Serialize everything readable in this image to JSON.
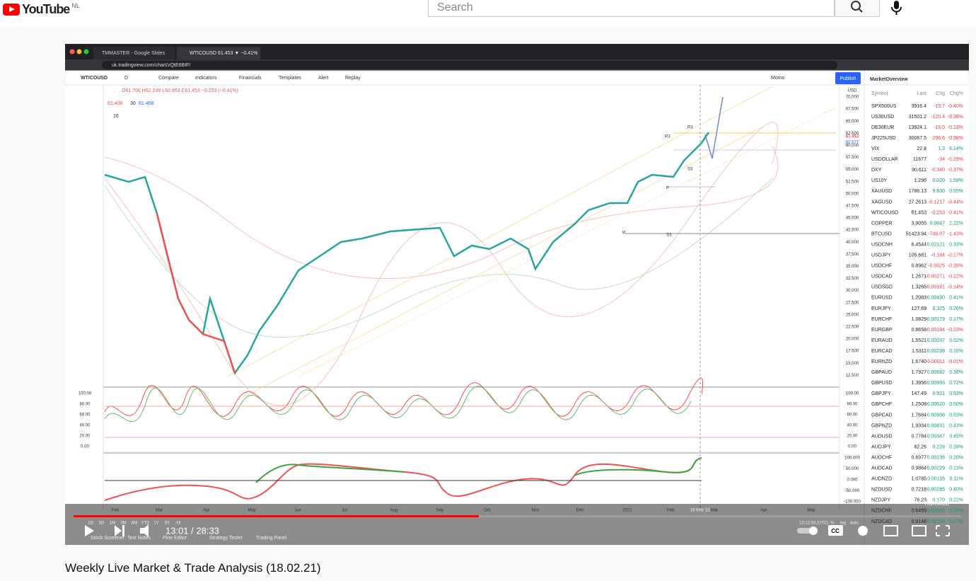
{
  "header": {
    "logo": "YouTube",
    "region": "NL",
    "search_placeholder": "Search"
  },
  "browser": {
    "tabs": [
      "TMMASTER - Google Slides",
      "WTICOUSD 61.453 ▼ −0.41%"
    ],
    "url": "uk.tradingview.com/chart/zQtE6BIF/"
  },
  "toolbar": {
    "symbol": "WTICOUSD",
    "interval": "D",
    "items": [
      "Compare",
      "Indicators",
      "Financials",
      "Templates",
      "Alert",
      "Replay"
    ],
    "layout": "Momo",
    "publish": "Publish"
  },
  "legend": {
    "ohlc": "O61.706 H62.249 L60.953 C61.453 −0.253 (−0.41%)",
    "bid": "61.438",
    "spread": "30",
    "ask": "61.468",
    "count": "16"
  },
  "price_axis": {
    "unit": "USD",
    "labels": [
      "70.000",
      "67.500",
      "65.000",
      "62.500",
      "60.000",
      "57.500",
      "55.000",
      "52.500",
      "50.000",
      "47.500",
      "45.000",
      "42.500",
      "40.000",
      "37.500",
      "35.000",
      "32.500",
      "30.000",
      "27.500",
      "25.000",
      "22.500",
      "20.000",
      "17.500",
      "15.000",
      "12.500"
    ],
    "last": "61.453",
    "cross": "60.577"
  },
  "pivots": [
    "R3",
    "R3",
    "S3",
    "P",
    "P",
    "S3"
  ],
  "osc_axis": [
    "100.00",
    "80.00",
    "60.00",
    "40.00",
    "20.00",
    "0.00"
  ],
  "mom_axis": [
    "100.000",
    "50.000",
    "0.000",
    "-50.000",
    "-100.000"
  ],
  "time_axis": [
    "Feb",
    "Mar",
    "Apr",
    "May",
    "Jun",
    "Jul",
    "Aug",
    "Sep",
    "Oct",
    "Nov",
    "Dec",
    "2021",
    "Feb",
    "Mar",
    "Apr",
    "May"
  ],
  "crosshair_date": "19 Feb '21",
  "watchlist": {
    "title": "MarketOverview",
    "columns": [
      "Symbol",
      "Last",
      "Chg",
      "Chg%"
    ],
    "rows": [
      [
        "SPX500US",
        "3916.4",
        "-15.7",
        "-0.40%"
      ],
      [
        "US30USD",
        "31501.2",
        "-120.4",
        "-0.38%"
      ],
      [
        "DE30EUR",
        "13924.1",
        "-18.0",
        "-0.13%"
      ],
      [
        "JP225USD",
        "30067.5",
        "-298.6",
        "-0.98%"
      ],
      [
        "VIX",
        "22.8",
        "1.3",
        "6.14%"
      ],
      [
        "USDOLLAR",
        "11677",
        "-34",
        "-0.29%"
      ],
      [
        "DXY",
        "90.611",
        "-0.340",
        "-0.37%"
      ],
      [
        "US10Y",
        "1.296",
        "0.020",
        "1.59%"
      ],
      [
        "XAUUSD",
        "1786.13",
        "9.830",
        "0.55%"
      ],
      [
        "XAGUSD",
        "27.2613",
        "-0.1217",
        "-0.44%"
      ],
      [
        "WTICOUSD",
        "61.453",
        "-0.253",
        "-0.41%"
      ],
      [
        "COPPER",
        "3.9055",
        "0.0847",
        "2.22%"
      ],
      [
        "BTCUSD",
        "51423.94",
        "-746.07",
        "-1.43%"
      ],
      [
        "USDCNH",
        "6.4544",
        "0.02121",
        "0.33%"
      ],
      [
        "USDJPY",
        "105.681",
        "-0.184",
        "-0.17%"
      ],
      [
        "USDCHF",
        "0.8962",
        "-0.0025",
        "-0.28%"
      ],
      [
        "USDCAD",
        "1.2671",
        "-0.00271",
        "-0.22%"
      ],
      [
        "USDSGD",
        "1.3265",
        "-0.00181",
        "-0.14%"
      ],
      [
        "EURUSD",
        "1.2083",
        "0.00490",
        "0.41%"
      ],
      [
        "EURJPY",
        "127.69",
        "0.325",
        "0.26%"
      ],
      [
        "EURCHF",
        "1.0829",
        "0.00179",
        "0.17%"
      ],
      [
        "EURGBP",
        "0.8658",
        "-0.00194",
        "-0.23%"
      ],
      [
        "EURAUD",
        "1.5521",
        "0.00037",
        "0.02%"
      ],
      [
        "EURCAD",
        "1.5311",
        "0.00238",
        "0.16%"
      ],
      [
        "EURNZD",
        "1.6740",
        "-0.00011",
        "-0.01%"
      ],
      [
        "GBPAUD",
        "1.7927",
        "0.00682",
        "0.38%"
      ],
      [
        "GBPUSD",
        "1.3956",
        "0.00993",
        "0.72%"
      ],
      [
        "GBPJPY",
        "147.49",
        "0.921",
        "0.63%"
      ],
      [
        "GBPCHF",
        "1.2508",
        "0.00620",
        "0.50%"
      ],
      [
        "GBPCAD",
        "1.7684",
        "0.00938",
        "0.53%"
      ],
      [
        "GBPNZD",
        "1.9334",
        "0.00831",
        "0.43%"
      ],
      [
        "AUDUSD",
        "0.7784",
        "0.00347",
        "0.45%"
      ],
      [
        "AUDJPY",
        "82.26",
        "0.228",
        "0.28%"
      ],
      [
        "AUDCHF",
        "0.6977",
        "0.00136",
        "0.20%"
      ],
      [
        "AUDCAD",
        "0.9864",
        "0.00229",
        "0.23%"
      ],
      [
        "AUDNZD",
        "1.0785",
        "0.00116",
        "0.11%"
      ],
      [
        "NZDUSD",
        "0.7218",
        "0.00285",
        "0.40%"
      ],
      [
        "NZDJPY",
        "76.23",
        "0.170",
        "0.22%"
      ],
      [
        "NZDCHF",
        "0.6469",
        "0.00103",
        "0.16%"
      ],
      [
        "NZDCAD",
        "0.9146",
        "0.00155",
        "0.17%"
      ]
    ]
  },
  "bottom": {
    "ranges": [
      "1D",
      "5D",
      "1M",
      "3M",
      "6M",
      "YTD",
      "1Y",
      "5Y",
      "All"
    ],
    "clock": "13:12:03 (UTC)",
    "scale": [
      "%",
      "log",
      "auto"
    ],
    "tabs": [
      "Stock Screener",
      "Text Notes",
      "Pine Editor",
      "Strategy Tester",
      "Trading Panel"
    ]
  },
  "player": {
    "time": "13:01 / 28:33",
    "watermark": "TICKMILL",
    "cc": "CC"
  },
  "video_title": "Weekly Live Market & Trade Analysis (18.02.21)"
}
